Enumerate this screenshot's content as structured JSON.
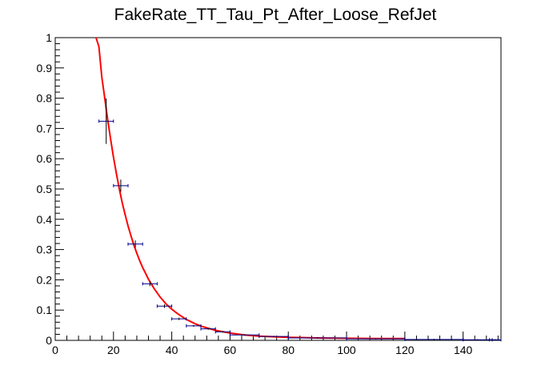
{
  "chart_data": {
    "type": "scatter",
    "title": "FakeRate_TT_Tau_Pt_After_Loose_RefJet",
    "xlabel": "",
    "ylabel": "",
    "xlim": [
      0,
      153
    ],
    "ylim": [
      0,
      1
    ],
    "grid": false,
    "x_ticks": [
      0,
      20,
      40,
      60,
      80,
      100,
      120,
      140
    ],
    "x_tick_labels": [
      "0",
      "20",
      "40",
      "60",
      "80",
      "100",
      "120",
      "140"
    ],
    "y_ticks": [
      0,
      0.1,
      0.2,
      0.3,
      0.4,
      0.5,
      0.6,
      0.7,
      0.8,
      0.9,
      1
    ],
    "y_tick_labels": [
      "0",
      "0.1",
      "0.2",
      "0.3",
      "0.4",
      "0.5",
      "0.6",
      "0.7",
      "0.8",
      "0.9",
      "1"
    ],
    "series": [
      {
        "kind": "points_with_errors",
        "color": "#00008b",
        "points": [
          {
            "x": 17.5,
            "y": 0.724,
            "xerr": 2.5,
            "yerr": 0.075
          },
          {
            "x": 22.5,
            "y": 0.511,
            "xerr": 2.5,
            "yerr": 0.02
          },
          {
            "x": 27.5,
            "y": 0.318,
            "xerr": 2.5,
            "yerr": 0.012
          },
          {
            "x": 32.5,
            "y": 0.187,
            "xerr": 2.5,
            "yerr": 0.008
          },
          {
            "x": 37.5,
            "y": 0.113,
            "xerr": 2.5,
            "yerr": 0.006
          },
          {
            "x": 42.5,
            "y": 0.071,
            "xerr": 2.5,
            "yerr": 0.004
          },
          {
            "x": 47.5,
            "y": 0.048,
            "xerr": 2.5,
            "yerr": 0.003
          },
          {
            "x": 52.5,
            "y": 0.038,
            "xerr": 2.5,
            "yerr": 0.003
          },
          {
            "x": 57.5,
            "y": 0.028,
            "xerr": 2.5,
            "yerr": 0.002
          },
          {
            "x": 65,
            "y": 0.018,
            "xerr": 5,
            "yerr": 0.002
          },
          {
            "x": 75,
            "y": 0.013,
            "xerr": 5,
            "yerr": 0.002
          },
          {
            "x": 90,
            "y": 0.008,
            "xerr": 10,
            "yerr": 0.002
          },
          {
            "x": 110,
            "y": 0.005,
            "xerr": 10,
            "yerr": 0.002
          },
          {
            "x": 130,
            "y": 0.003,
            "xerr": 10,
            "yerr": 0.002
          },
          {
            "x": 145,
            "y": 0.002,
            "xerr": 5,
            "yerr": 0.002
          },
          {
            "x": 151,
            "y": 0.002,
            "xerr": 2,
            "yerr": 0.002
          }
        ]
      },
      {
        "kind": "fit_curve",
        "color": "#ff0000",
        "x": [
          14,
          15,
          16,
          17,
          18,
          19,
          20,
          21,
          22,
          23,
          24,
          25,
          26,
          27,
          28,
          29,
          30,
          32,
          34,
          36,
          38,
          40,
          42,
          45,
          48,
          50,
          55,
          60,
          65,
          70,
          80,
          90,
          100,
          110,
          120
        ],
        "y": [
          1.0,
          0.97,
          0.87,
          0.8,
          0.73,
          0.665,
          0.605,
          0.55,
          0.5,
          0.455,
          0.415,
          0.378,
          0.345,
          0.315,
          0.288,
          0.263,
          0.241,
          0.202,
          0.17,
          0.143,
          0.121,
          0.103,
          0.088,
          0.069,
          0.055,
          0.047,
          0.033,
          0.024,
          0.018,
          0.014,
          0.01,
          0.008,
          0.007,
          0.006,
          0.006
        ]
      }
    ]
  }
}
